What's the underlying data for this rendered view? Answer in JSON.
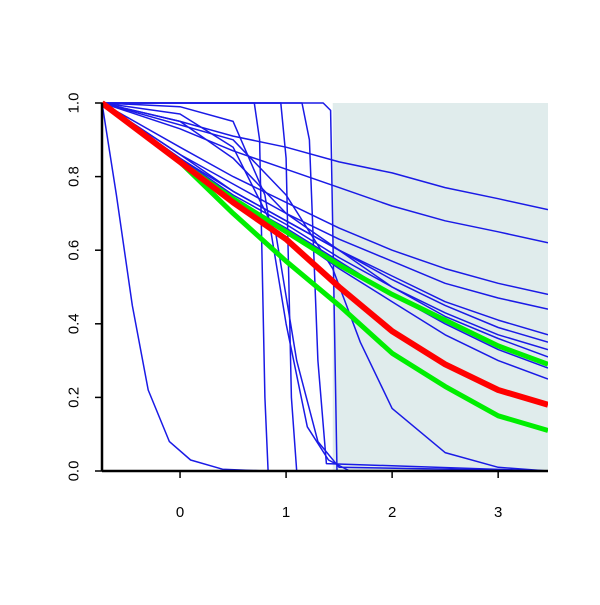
{
  "chart_data": {
    "type": "line",
    "xlim": [
      -0.736,
      3.47
    ],
    "ylim": [
      0,
      1
    ],
    "xticks": [
      0,
      1,
      2,
      3
    ],
    "yticks": [
      {
        "value": 0,
        "label": "0.0"
      },
      {
        "value": 0.2,
        "label": "0.2"
      },
      {
        "value": 0.4,
        "label": "0.4"
      },
      {
        "value": 0.6,
        "label": "0.6"
      },
      {
        "value": 0.8,
        "label": "0.8"
      },
      {
        "value": 1,
        "label": "1.0"
      }
    ],
    "shade": {
      "xlim": [
        1.44,
        3.47
      ],
      "color": "#e0ecec"
    },
    "series": [
      {
        "color": "#1a1ae6",
        "width": 1.5,
        "x": [
          -0.736,
          0,
          0.5,
          1,
          1.5,
          2,
          2.5,
          3,
          3.47
        ],
        "values": [
          1,
          0.95,
          0.91,
          0.88,
          0.84,
          0.81,
          0.77,
          0.74,
          0.71
        ]
      },
      {
        "color": "#1a1ae6",
        "width": 1.5,
        "x": [
          -0.736,
          0,
          0.5,
          1,
          1.5,
          2,
          2.5,
          3,
          3.47
        ],
        "values": [
          1,
          0.93,
          0.87,
          0.82,
          0.77,
          0.72,
          0.68,
          0.65,
          0.62
        ]
      },
      {
        "color": "#1a1ae6",
        "width": 1.5,
        "x": [
          -0.736,
          0,
          0.5,
          1,
          1.5,
          2,
          2.5,
          3,
          3.47
        ],
        "values": [
          1,
          0.88,
          0.8,
          0.73,
          0.66,
          0.6,
          0.55,
          0.51,
          0.48
        ]
      },
      {
        "color": "#1a1ae6",
        "width": 1.5,
        "x": [
          -0.736,
          0,
          0.5,
          1,
          1.5,
          2,
          2.5,
          3,
          3.47
        ],
        "values": [
          1,
          0.86,
          0.78,
          0.7,
          0.63,
          0.57,
          0.51,
          0.47,
          0.44
        ]
      },
      {
        "color": "#1a1ae6",
        "width": 1.5,
        "x": [
          -0.736,
          0,
          0.5,
          1,
          1.5,
          2,
          2.5,
          3,
          3.47
        ],
        "values": [
          1,
          0.85,
          0.76,
          0.68,
          0.6,
          0.53,
          0.46,
          0.41,
          0.37
        ]
      },
      {
        "color": "#1a1ae6",
        "width": 1.5,
        "x": [
          -0.736,
          0,
          0.5,
          1,
          1.5,
          2,
          2.5,
          3,
          3.47
        ],
        "values": [
          1,
          0.85,
          0.75,
          0.67,
          0.58,
          0.5,
          0.43,
          0.37,
          0.33
        ]
      },
      {
        "color": "#1a1ae6",
        "width": 1.5,
        "x": [
          -0.736,
          0,
          0.5,
          1,
          1.5,
          2,
          2.5,
          3,
          3.47
        ],
        "values": [
          1,
          0.84,
          0.74,
          0.66,
          0.57,
          0.48,
          0.4,
          0.33,
          0.28
        ]
      },
      {
        "color": "#1a1ae6",
        "width": 1.5,
        "x": [
          -0.736,
          0,
          0.5,
          1,
          1.5,
          2,
          2.5,
          3,
          3.47
        ],
        "values": [
          1,
          0.84,
          0.74,
          0.65,
          0.55,
          0.46,
          0.37,
          0.3,
          0.25
        ]
      },
      {
        "color": "#1a1ae6",
        "width": 1.5,
        "x": [
          -0.736,
          0,
          0.5,
          1,
          1.5,
          2,
          2.5,
          3,
          3.47
        ],
        "values": [
          1,
          0.86,
          0.76,
          0.68,
          0.6,
          0.52,
          0.45,
          0.39,
          0.35
        ]
      },
      {
        "color": "#1a1ae6",
        "width": 1.5,
        "x": [
          -0.736,
          0,
          0.5,
          1,
          1.5,
          2,
          2.5,
          3,
          3.47
        ],
        "values": [
          1,
          0.95,
          0.85,
          0.7,
          0.6,
          0.5,
          0.42,
          0.36,
          0.31
        ]
      },
      {
        "color": "#1a1ae6",
        "width": 1.5,
        "x": [
          -0.736,
          0.7,
          0.75,
          0.8,
          0.83,
          3.47
        ],
        "values": [
          1,
          1,
          0.9,
          0.2,
          0,
          0
        ]
      },
      {
        "color": "#1a1ae6",
        "width": 1.5,
        "x": [
          -0.736,
          0.95,
          1.0,
          1.05,
          1.1,
          3.47
        ],
        "values": [
          1,
          1,
          0.85,
          0.2,
          0,
          0
        ]
      },
      {
        "color": "#1a1ae6",
        "width": 1.5,
        "x": [
          -0.736,
          1.35,
          1.42,
          1.45,
          1.48,
          3.47
        ],
        "values": [
          1,
          1,
          0.98,
          0.5,
          0,
          0
        ]
      },
      {
        "color": "#1a1ae6",
        "width": 1.5,
        "x": [
          -0.736,
          1.15,
          1.22,
          1.3,
          1.38,
          3.47
        ],
        "values": [
          1,
          1,
          0.9,
          0.3,
          0.02,
          0
        ]
      },
      {
        "color": "#1a1ae6",
        "width": 1.5,
        "x": [
          -0.736,
          0,
          0.5,
          0.8,
          1,
          1.2,
          1.4,
          1.6,
          3.47
        ],
        "values": [
          1,
          0.99,
          0.95,
          0.75,
          0.4,
          0.12,
          0.03,
          0,
          0
        ]
      },
      {
        "color": "#1a1ae6",
        "width": 1.5,
        "x": [
          -0.736,
          0,
          0.5,
          0.9,
          1.1,
          1.3,
          1.5,
          3.47
        ],
        "values": [
          1,
          0.97,
          0.88,
          0.65,
          0.3,
          0.08,
          0.01,
          0
        ]
      },
      {
        "color": "#1a1ae6",
        "width": 1.5,
        "x": [
          -0.736,
          -0.6,
          -0.45,
          -0.3,
          -0.1,
          0.1,
          0.4,
          0.8
        ],
        "values": [
          1,
          0.75,
          0.45,
          0.22,
          0.08,
          0.03,
          0.005,
          0
        ]
      },
      {
        "color": "#1a1ae6",
        "width": 1.5,
        "x": [
          -0.736,
          0.5,
          1.0,
          1.44,
          1.7,
          2,
          2.5,
          3,
          3.47
        ],
        "values": [
          1,
          0.9,
          0.75,
          0.55,
          0.35,
          0.17,
          0.05,
          0.01,
          0
        ]
      },
      {
        "color": "#00ee00",
        "width": 5,
        "x": [
          -0.736,
          0,
          0.5,
          1,
          1.5,
          2,
          2.5,
          3,
          3.47
        ],
        "values": [
          1,
          0.84,
          0.74,
          0.65,
          0.56,
          0.48,
          0.41,
          0.34,
          0.29
        ]
      },
      {
        "color": "#00ee00",
        "width": 5,
        "x": [
          -0.736,
          0,
          0.5,
          1,
          1.5,
          2,
          2.5,
          3,
          3.47
        ],
        "values": [
          1,
          0.84,
          0.7,
          0.57,
          0.45,
          0.32,
          0.23,
          0.15,
          0.11
        ]
      },
      {
        "color": "#ff0000",
        "width": 6,
        "x": [
          -0.736,
          0,
          0.5,
          1,
          1.5,
          2,
          2.5,
          3,
          3.47
        ],
        "values": [
          1,
          0.84,
          0.73,
          0.63,
          0.5,
          0.38,
          0.29,
          0.22,
          0.18
        ]
      }
    ]
  }
}
